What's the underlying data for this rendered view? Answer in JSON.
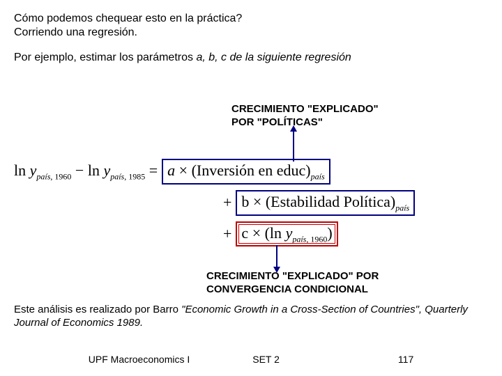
{
  "intro": {
    "q": "Cómo podemos chequear esto en la práctica?",
    "a": "Corriendo una regresión."
  },
  "example": {
    "lead": "Por ejemplo, estimar los parámetros ",
    "params": "a, b, c",
    "tail": " de la siguiente regresión"
  },
  "label_top": {
    "line1": "CRECIMIENTO \"EXPLICADO\"",
    "line2": "POR \"POLÍTICAS\""
  },
  "label_bottom": {
    "line1": "CRECIMIENTO \"EXPLICADO\" POR",
    "line2": "CONVERGENCIA CONDICIONAL"
  },
  "formula": {
    "lhs_a": "ln ",
    "lhs_y": "y",
    "sub_pais": "país",
    "sub_1960": "1960",
    "sub_1985": "1985",
    "minus": " − ",
    "eq": " = ",
    "plus": "+",
    "times": "×",
    "a": "a",
    "b": "b",
    "c": "c",
    "term1": "(Inversión en educ)",
    "term2": "(Estabilidad Política)",
    "term3_open": "(ln ",
    "term3_close": ")"
  },
  "citation": {
    "lead": "Este análisis es realizado por Barro ",
    "title": "\"Economic Growth in a Cross-Section of Countries\", Quarterly Journal of Economics 1989."
  },
  "footer": {
    "course": "UPF Macroeconomics I",
    "set": "SET 2",
    "page": "117"
  },
  "colors": {
    "box_blue": "#000080",
    "box_red": "#c00000",
    "text": "#000000",
    "background": "#ffffff"
  }
}
